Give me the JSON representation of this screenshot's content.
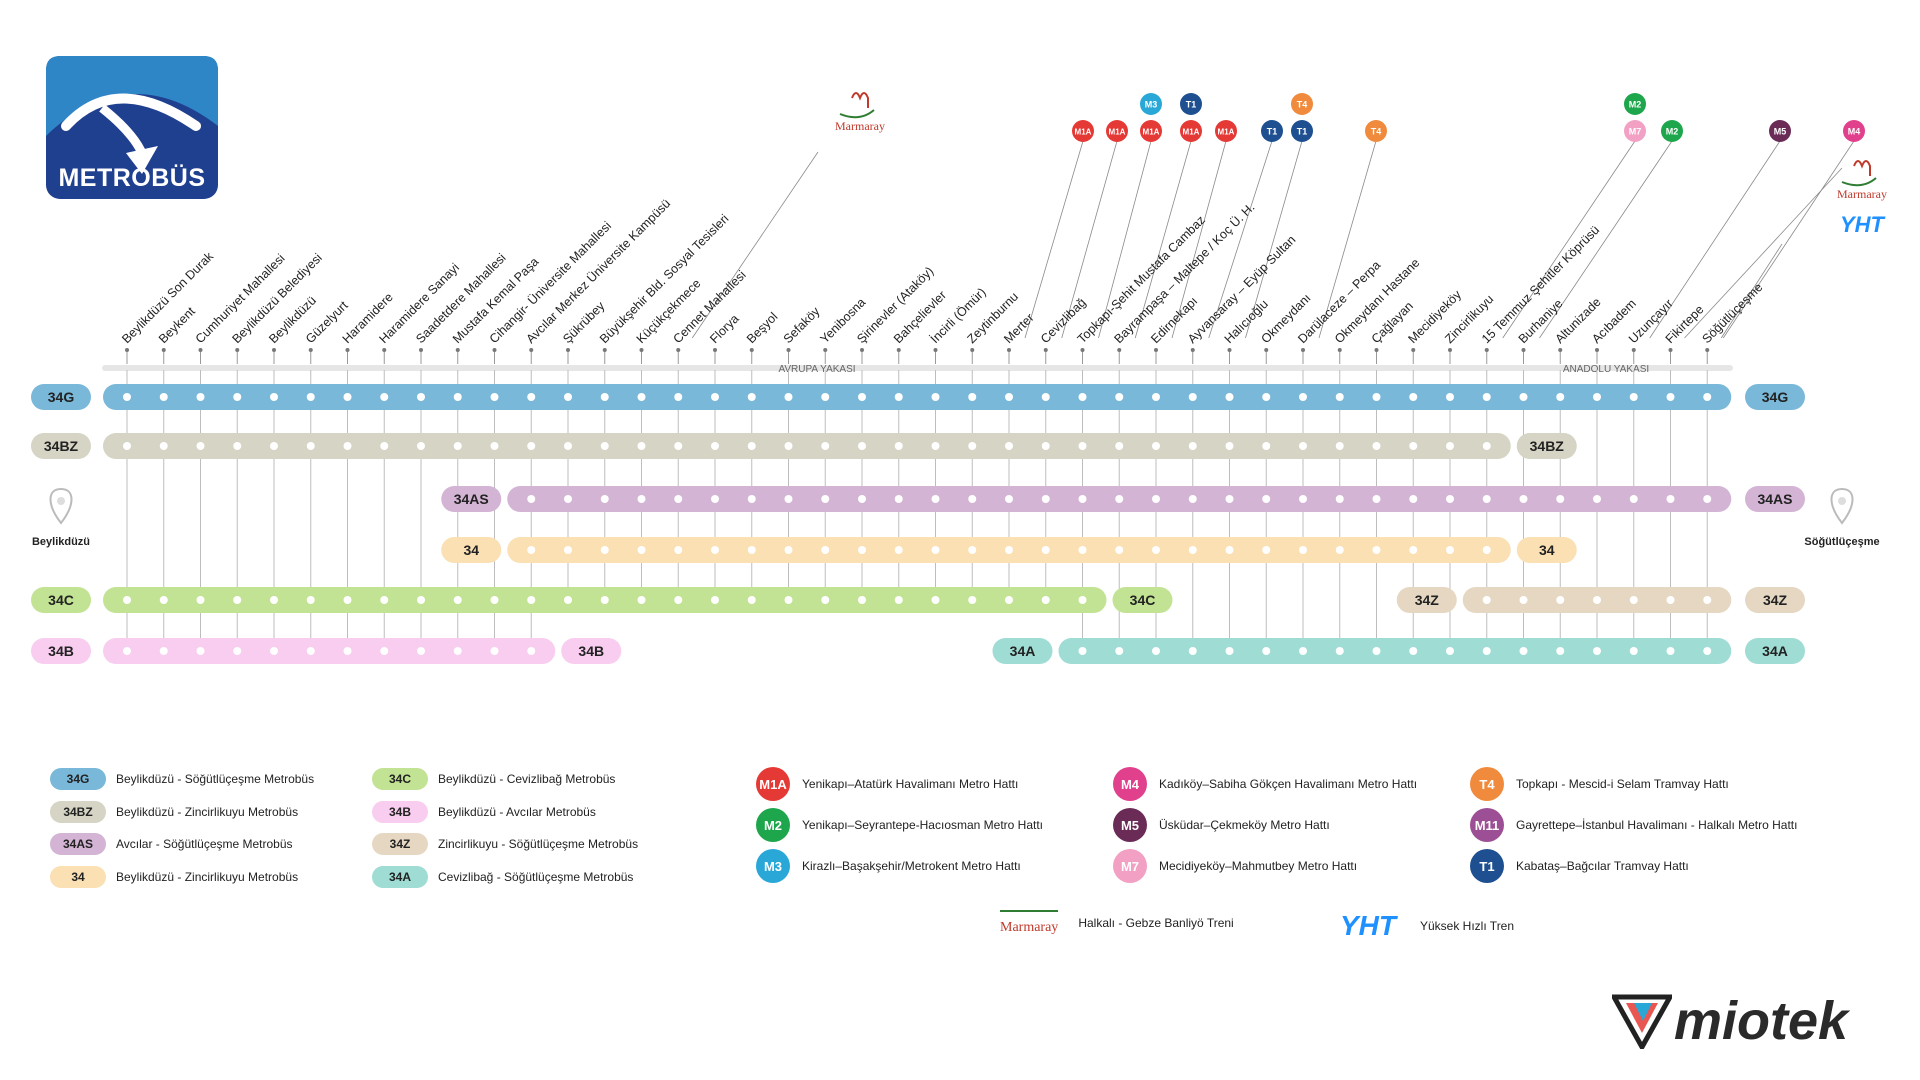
{
  "brand": {
    "logo_text": "METROBÜS",
    "colors": {
      "logo_bg": "#1f3f8f",
      "logo_sky": "#2f86c6"
    }
  },
  "sections": {
    "europe": "AVRUPA YAKASI",
    "asia": "ANADOLU YAKASI"
  },
  "termini": {
    "west": "Beylikdüzü",
    "east": "Söğütlüçeşme"
  },
  "stations": [
    "Beylikdüzü Son Durak",
    "Beykent",
    "Cumhuriyet Mahallesi",
    "Beylikdüzü Belediyesi",
    "Beylikdüzü",
    "Güzelyurt",
    "Haramidere",
    "Haramidere Sanayi",
    "Saadetdere Mahallesi",
    "Mustafa Kemal Paşa",
    "Cihangir- Üniversite Mahallesi",
    "Avcılar Merkez Üniversite Kampüsü",
    "Şükrübey",
    "Büyükşehir Bld. Sosyal Tesisleri",
    "Küçükçekmece",
    "Cennet Mahallesi",
    "Florya",
    "Beşyol",
    "Sefaköy",
    "Yenibosna",
    "Şirinevler (Ataköy)",
    "Bahçelievler",
    "İncirli (Ömür)",
    "Zeytinburnu",
    "Merter",
    "Cevizlibağ",
    "Topkapı-Şehit Mustafa Cambaz",
    "Bayrampaşa – Maltepe / Koç Ü. H.",
    "Edirnekapı",
    "Ayvansaray – Eyüp Sultan",
    "Halıcıoğlu",
    "Okmeydanı",
    "Darülaceze – Perpa",
    "Okmeydanı Hastane",
    "Çağlayan",
    "Mecidiyeköy",
    "Zincirlikuyu",
    "15 Temmuz Şehitler Köprüsü",
    "Burhaniye",
    "Altunizade",
    "Acıbadem",
    "Uzunçayır",
    "Fikirtepe",
    "Söğütlüçeşme"
  ],
  "connections": [
    {
      "code": "M1A",
      "label": "M1A",
      "color": "#e53935",
      "station_index": 24,
      "level": 1
    },
    {
      "code": "M1A",
      "label": "M1A",
      "color": "#e53935",
      "station_index": 25,
      "level": 1
    },
    {
      "code": "M1A",
      "label": "M1A",
      "color": "#e53935",
      "station_index": 26,
      "level": 1
    },
    {
      "code": "M3",
      "label": "M3",
      "color": "#29a8d8",
      "station_index": 26,
      "level": 2
    },
    {
      "code": "M1A",
      "label": "M1A",
      "color": "#e53935",
      "station_index": 27,
      "level": 1
    },
    {
      "code": "T1",
      "label": "T1",
      "color": "#1d4f91",
      "station_index": 27,
      "level": 2
    },
    {
      "code": "M1A",
      "label": "M1A",
      "color": "#e53935",
      "station_index": 28,
      "level": 1
    },
    {
      "code": "T1",
      "label": "T1",
      "color": "#1d4f91",
      "station_index": 29,
      "level": 1
    },
    {
      "code": "T1",
      "label": "T1",
      "color": "#1d4f91",
      "station_index": 30,
      "level": 1
    },
    {
      "code": "T4",
      "label": "T4",
      "color": "#f08a3c",
      "station_index": 30,
      "level": 2
    },
    {
      "code": "T4",
      "label": "T4",
      "color": "#f08a3c",
      "station_index": 32,
      "level": 1
    },
    {
      "code": "M7",
      "label": "M7",
      "color": "#f2a1c4",
      "station_index": 37,
      "level": 1
    },
    {
      "code": "M2",
      "label": "M2",
      "color": "#1ea64d",
      "station_index": 37,
      "level": 2
    },
    {
      "code": "M2",
      "label": "M2",
      "color": "#1ea64d",
      "station_index": 38,
      "level": 1
    },
    {
      "code": "M5",
      "label": "M5",
      "color": "#6a2c57",
      "station_index": 41,
      "level": 1
    },
    {
      "code": "M4",
      "label": "M4",
      "color": "#e0408c",
      "station_index": 43,
      "level": 1
    }
  ],
  "marmaray": {
    "label": "Marmaray"
  },
  "yht": {
    "label": "YHT"
  },
  "routes": [
    {
      "code": "34G",
      "name": "Beylikdüzü - Söğütlüçeşme Metrobüs",
      "color": "#7ab8d9",
      "from": 0,
      "to": 43
    },
    {
      "code": "34BZ",
      "name": "Beylikdüzü - Zincirlikuyu Metrobüs",
      "color": "#d6d4c4",
      "from": 0,
      "to": 37
    },
    {
      "code": "34AS",
      "name": "Avcılar - Söğütlüçeşme Metrobüs",
      "color": "#d3b4d4",
      "from": 11,
      "to": 43
    },
    {
      "code": "34",
      "name": "Beylikdüzü - Zincirlikuyu Metrobüs",
      "color": "#fae0b3",
      "from": 11,
      "to": 37
    },
    {
      "code": "34C",
      "name": "Beylikdüzü - Cevizlibağ Metrobüs",
      "color": "#c3e394",
      "from": 0,
      "to": 26
    },
    {
      "code": "34B",
      "name": "Beylikdüzü - Avcılar Metrobüs",
      "color": "#f8cdef",
      "from": 0,
      "to": 11
    },
    {
      "code": "34Z",
      "name": "Zincirlikuyu - Söğütlüçeşme Metrobüs",
      "color": "#e6d7c3",
      "from": 37,
      "to": 43
    },
    {
      "code": "34A",
      "name": "Cevizlibağ - Söğütlüçeşme Metrobüs",
      "color": "#9fdcd3",
      "from": 26,
      "to": 43
    }
  ],
  "rail_legend": [
    {
      "code": "M1A",
      "label": "M1A",
      "name": "Yenikapı–Atatürk Havalimanı Metro Hattı",
      "color": "#e53935"
    },
    {
      "code": "M2",
      "label": "M2",
      "name": "Yenikapı–Seyrantepe-Hacıosman Metro Hattı",
      "color": "#1ea64d"
    },
    {
      "code": "M3",
      "label": "M3",
      "name": "Kirazlı–Başakşehir/Metrokent Metro Hattı",
      "color": "#29a8d8"
    },
    {
      "code": "M4",
      "label": "M4",
      "name": "Kadıköy–Sabiha Gökçen Havalimanı Metro Hattı",
      "color": "#e0408c"
    },
    {
      "code": "M5",
      "label": "M5",
      "name": "Üsküdar–Çekmeköy Metro Hattı",
      "color": "#6a2c57"
    },
    {
      "code": "M7",
      "label": "M7",
      "name": "Mecidiyeköy–Mahmutbey Metro Hattı",
      "color": "#f2a1c4"
    },
    {
      "code": "T4",
      "label": "T4",
      "name": "Topkapı - Mescid-i Selam Tramvay Hattı",
      "color": "#f08a3c"
    },
    {
      "code": "M11",
      "label": "M11",
      "name": "Gayrettepe–İstanbul Havalimanı - Halkalı Metro Hattı",
      "color": "#9c4f94"
    },
    {
      "code": "T1",
      "label": "T1",
      "name": "Kabataş–Bağcılar Tramvay Hattı",
      "color": "#1d4f91"
    }
  ],
  "other_legend": [
    {
      "code": "MARMARAY",
      "label": "Marmaray",
      "name": "Halkalı - Gebze Banliyö Treni"
    },
    {
      "code": "YHT",
      "label": "YHT",
      "name": "Yüksek Hızlı Tren"
    }
  ],
  "footer": {
    "brand": "miotek"
  }
}
